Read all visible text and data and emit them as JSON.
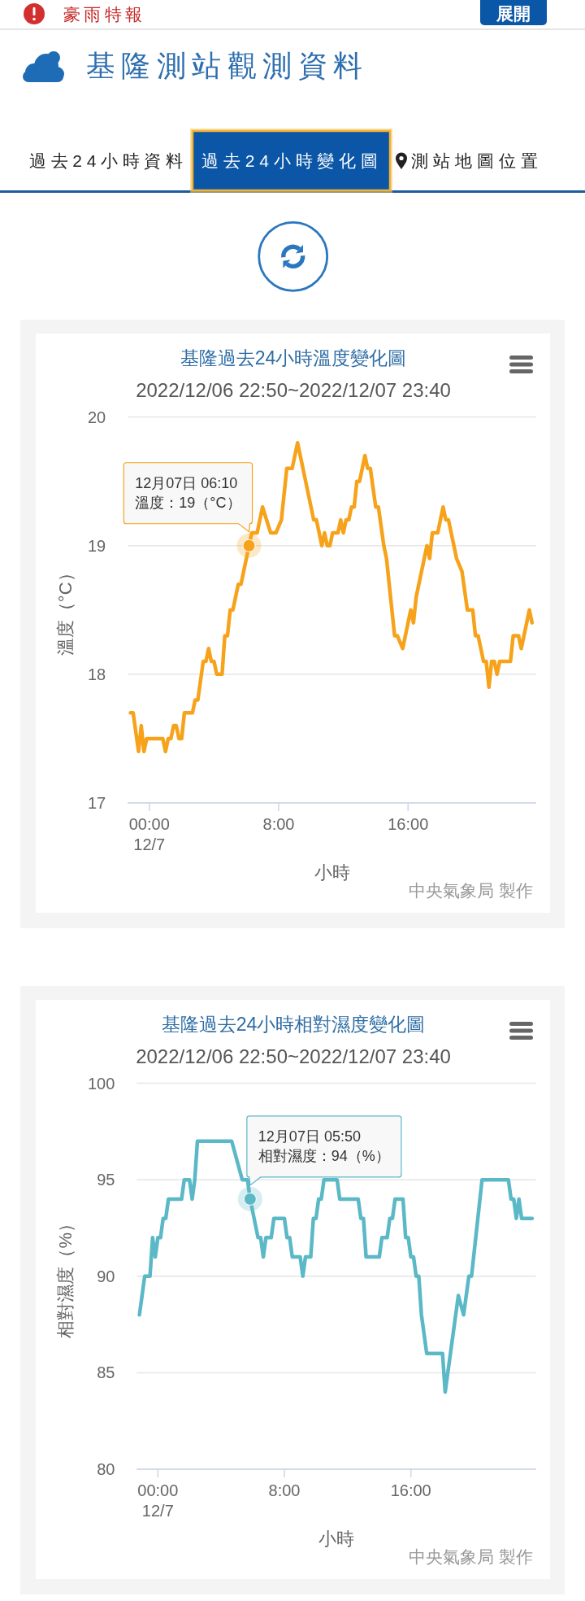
{
  "chart_data": [
    {
      "type": "other",
      "title": "基隆測站觀測資料",
      "annotations": [
        "豪雨特報",
        "展開",
        "過去24小時資料",
        "過去24小時變化圖",
        "測站地圖位置"
      ]
    },
    {
      "type": "line",
      "title": "基隆過去24小時溫度變化圖",
      "subtitle": "2022/12/06 22:50~2022/12/07 23:40",
      "xlabel": "小時",
      "ylabel": "溫度（°C）",
      "x": [
        "2022-12-06T22:50",
        "2022-12-06T23:00",
        "2022-12-06T23:20",
        "2022-12-06T23:30",
        "2022-12-06T23:40",
        "2022-12-06T23:50",
        "2022-12-07T00:50",
        "2022-12-07T01:00",
        "2022-12-07T01:10",
        "2022-12-07T01:20",
        "2022-12-07T01:30",
        "2022-12-07T01:40",
        "2022-12-07T01:50",
        "2022-12-07T02:00",
        "2022-12-07T02:10",
        "2022-12-07T02:40",
        "2022-12-07T02:50",
        "2022-12-07T03:00",
        "2022-12-07T03:20",
        "2022-12-07T03:30",
        "2022-12-07T03:40",
        "2022-12-07T03:50",
        "2022-12-07T04:00",
        "2022-12-07T04:10",
        "2022-12-07T04:30",
        "2022-12-07T04:40",
        "2022-12-07T04:50",
        "2022-12-07T05:00",
        "2022-12-07T05:10",
        "2022-12-07T05:30",
        "2022-12-07T05:40",
        "2022-12-07T06:10",
        "2022-12-07T06:20",
        "2022-12-07T06:40",
        "2022-12-07T07:00",
        "2022-12-07T07:30",
        "2022-12-07T07:50",
        "2022-12-07T08:10",
        "2022-12-07T08:30",
        "2022-12-07T08:50",
        "2022-12-07T09:10",
        "2022-12-07T09:30",
        "2022-12-07T10:10",
        "2022-12-07T10:20",
        "2022-12-07T10:40",
        "2022-12-07T10:50",
        "2022-12-07T11:00",
        "2022-12-07T11:10",
        "2022-12-07T11:20",
        "2022-12-07T11:40",
        "2022-12-07T11:50",
        "2022-12-07T12:00",
        "2022-12-07T12:10",
        "2022-12-07T12:20",
        "2022-12-07T12:30",
        "2022-12-07T12:40",
        "2022-12-07T12:50",
        "2022-12-07T13:00",
        "2022-12-07T13:20",
        "2022-12-07T13:30",
        "2022-12-07T13:40",
        "2022-12-07T14:00",
        "2022-12-07T14:10",
        "2022-12-07T14:30",
        "2022-12-07T14:40",
        "2022-12-07T15:10",
        "2022-12-07T15:20",
        "2022-12-07T15:40",
        "2022-12-07T16:10",
        "2022-12-07T16:20",
        "2022-12-07T16:30",
        "2022-12-07T17:10",
        "2022-12-07T17:20",
        "2022-12-07T17:30",
        "2022-12-07T17:50",
        "2022-12-07T18:10",
        "2022-12-07T18:20",
        "2022-12-07T18:30",
        "2022-12-07T19:00",
        "2022-12-07T19:20",
        "2022-12-07T19:40",
        "2022-12-07T20:00",
        "2022-12-07T20:10",
        "2022-12-07T20:20",
        "2022-12-07T20:40",
        "2022-12-07T20:50",
        "2022-12-07T21:00",
        "2022-12-07T21:10",
        "2022-12-07T21:20",
        "2022-12-07T21:30",
        "2022-12-07T21:40",
        "2022-12-07T22:20",
        "2022-12-07T22:30",
        "2022-12-07T22:50",
        "2022-12-07T23:00",
        "2022-12-07T23:30",
        "2022-12-07T23:40"
      ],
      "series": [
        {
          "color": "#f7a21b",
          "values": [
            17.7,
            17.7,
            17.4,
            17.6,
            17.4,
            17.5,
            17.5,
            17.4,
            17.5,
            17.5,
            17.6,
            17.6,
            17.5,
            17.5,
            17.7,
            17.7,
            17.8,
            17.8,
            18.1,
            18.1,
            18.2,
            18.1,
            18.1,
            18.0,
            18.0,
            18.3,
            18.3,
            18.5,
            18.5,
            18.7,
            18.7,
            19.0,
            19.1,
            19.1,
            19.3,
            19.1,
            19.1,
            19.2,
            19.6,
            19.6,
            19.8,
            19.6,
            19.2,
            19.2,
            19.0,
            19.1,
            19.0,
            19.0,
            19.1,
            19.1,
            19.2,
            19.1,
            19.2,
            19.2,
            19.3,
            19.3,
            19.5,
            19.5,
            19.7,
            19.6,
            19.6,
            19.3,
            19.3,
            19.0,
            18.9,
            18.3,
            18.3,
            18.2,
            18.5,
            18.4,
            18.6,
            19.0,
            18.9,
            19.1,
            19.1,
            19.3,
            19.2,
            19.2,
            18.9,
            18.8,
            18.5,
            18.5,
            18.3,
            18.3,
            18.1,
            18.1,
            17.9,
            18.1,
            18.1,
            18.0,
            18.1,
            18.1,
            18.3,
            18.3,
            18.2,
            18.5,
            18.4
          ]
        }
      ],
      "xlim": [
        "2022-12-06T22:40",
        "2022-12-07T23:55"
      ],
      "xticks": [
        {
          "value": "2022-12-07T00:00",
          "label": "00:00\n12/7"
        },
        {
          "value": "2022-12-07T08:00",
          "label": "8:00"
        },
        {
          "value": "2022-12-07T16:00",
          "label": "16:00"
        }
      ],
      "ylim": [
        17,
        20
      ],
      "yticks": [
        17,
        18,
        19,
        20
      ],
      "grid": "y",
      "annotations": [
        {
          "text": "12月07日 06:10\n溫度：19（°C）",
          "x": "2022-12-07T06:10",
          "y": 19
        },
        "中央氣象局 製作"
      ]
    },
    {
      "type": "line",
      "title": "基隆過去24小時相對濕度變化圖",
      "subtitle": "2022/12/06 22:50~2022/12/07 23:40",
      "xlabel": "小時",
      "ylabel": "相對濕度（%）",
      "x": [
        "2022-12-06T22:50",
        "2022-12-06T23:10",
        "2022-12-06T23:30",
        "2022-12-06T23:40",
        "2022-12-06T23:50",
        "2022-12-07T00:00",
        "2022-12-07T00:10",
        "2022-12-07T00:20",
        "2022-12-07T00:30",
        "2022-12-07T00:40",
        "2022-12-07T01:30",
        "2022-12-07T01:40",
        "2022-12-07T02:00",
        "2022-12-07T02:10",
        "2022-12-07T02:20",
        "2022-12-07T02:30",
        "2022-12-07T04:40",
        "2022-12-07T05:20",
        "2022-12-07T05:40",
        "2022-12-07T05:50",
        "2022-12-07T06:20",
        "2022-12-07T06:30",
        "2022-12-07T06:40",
        "2022-12-07T06:50",
        "2022-12-07T07:10",
        "2022-12-07T07:20",
        "2022-12-07T08:00",
        "2022-12-07T08:10",
        "2022-12-07T08:20",
        "2022-12-07T08:30",
        "2022-12-07T09:00",
        "2022-12-07T09:10",
        "2022-12-07T09:20",
        "2022-12-07T09:40",
        "2022-12-07T09:50",
        "2022-12-07T10:00",
        "2022-12-07T10:10",
        "2022-12-07T10:20",
        "2022-12-07T10:30",
        "2022-12-07T11:20",
        "2022-12-07T11:30",
        "2022-12-07T12:40",
        "2022-12-07T12:50",
        "2022-12-07T13:00",
        "2022-12-07T13:10",
        "2022-12-07T14:00",
        "2022-12-07T14:10",
        "2022-12-07T14:30",
        "2022-12-07T14:40",
        "2022-12-07T14:50",
        "2022-12-07T15:00",
        "2022-12-07T15:30",
        "2022-12-07T15:40",
        "2022-12-07T15:50",
        "2022-12-07T16:00",
        "2022-12-07T16:10",
        "2022-12-07T16:20",
        "2022-12-07T16:30",
        "2022-12-07T16:40",
        "2022-12-07T17:00",
        "2022-12-07T18:00",
        "2022-12-07T18:10",
        "2022-12-07T19:00",
        "2022-12-07T19:20",
        "2022-12-07T19:40",
        "2022-12-07T19:50",
        "2022-12-07T20:30",
        "2022-12-07T22:10",
        "2022-12-07T22:20",
        "2022-12-07T22:30",
        "2022-12-07T22:40",
        "2022-12-07T22:50",
        "2022-12-07T23:00",
        "2022-12-07T23:40"
      ],
      "series": [
        {
          "color": "#5bb8c6",
          "values": [
            88,
            90,
            90,
            92,
            91,
            92,
            92,
            93,
            93,
            94,
            94,
            95,
            95,
            94,
            95,
            97,
            97,
            95,
            95,
            94,
            92,
            92,
            91,
            92,
            92,
            93,
            93,
            92,
            92,
            91,
            91,
            90,
            91,
            91,
            93,
            93,
            94,
            94,
            95,
            95,
            94,
            94,
            93,
            93,
            91,
            91,
            92,
            92,
            93,
            93,
            94,
            94,
            92,
            92,
            91,
            91,
            90,
            90,
            88,
            86,
            86,
            84,
            89,
            88,
            90,
            90,
            95,
            95,
            94,
            94,
            93,
            94,
            93,
            93
          ]
        }
      ],
      "xlim": [
        "2022-12-06T22:40",
        "2022-12-07T23:55"
      ],
      "xticks": [
        {
          "value": "2022-12-07T00:00",
          "label": "00:00\n12/7"
        },
        {
          "value": "2022-12-07T08:00",
          "label": "8:00"
        },
        {
          "value": "2022-12-07T16:00",
          "label": "16:00"
        }
      ],
      "ylim": [
        80,
        100
      ],
      "yticks": [
        80,
        85,
        90,
        95,
        100
      ],
      "grid": "y",
      "annotations": [
        {
          "text": "12月07日 05:50\n相對濕度：94（%）",
          "x": "2022-12-07T05:50",
          "y": 94
        },
        "中央氣象局 製作"
      ]
    }
  ]
}
